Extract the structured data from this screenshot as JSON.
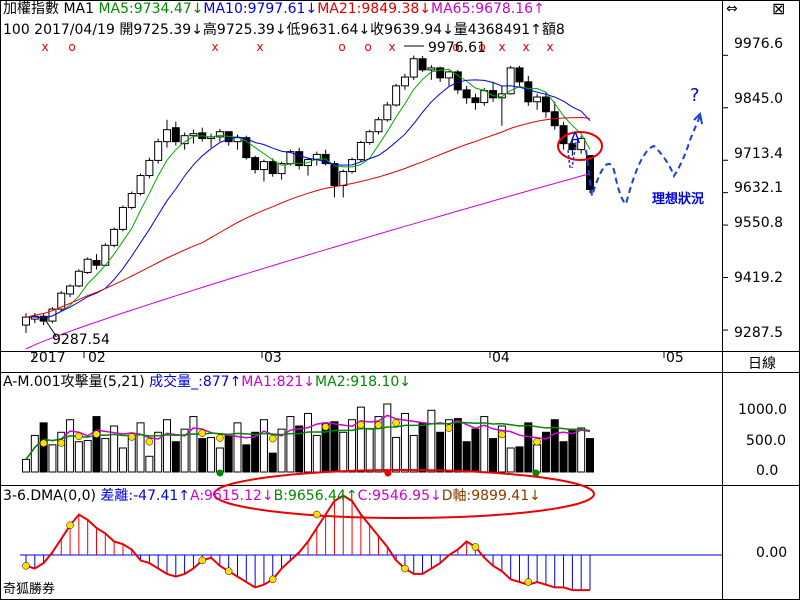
{
  "header": {
    "line1": [
      {
        "text": "加權指數 MA1 ",
        "color": "#000000"
      },
      {
        "text": "MA5:9734.47↓",
        "color": "#008800"
      },
      {
        "text": "MA10:9797.61↓",
        "color": "#0000e0"
      },
      {
        "text": "MA21:9849.38↓",
        "color": "#e00000"
      },
      {
        "text": "MA65:9678.16↑",
        "color": "#d000d0"
      }
    ],
    "line2": "100 2017/04/19 開9725.39↓高9725.39↓低9631.64↓收9639.94↓量4368491↑額8"
  },
  "price_axis": {
    "labels": [
      "9976.6",
      "9845.0",
      "9713.4",
      "9632.1",
      "9550.8",
      "9419.2",
      "9287.5"
    ],
    "unit_label": "日線"
  },
  "price_annotations": {
    "high": "9976.61",
    "low": "9287.54",
    "a_mark": "A",
    "question": "?",
    "ideal": "理想狀況"
  },
  "date_axis": {
    "labels": [
      "2017",
      "02",
      "03",
      "04",
      "05"
    ]
  },
  "volume_panel": {
    "title_parts": [
      {
        "text": "A-M.001攻擊量(5,21) ",
        "color": "#000000"
      },
      {
        "text": "成交量_:877↑",
        "color": "#0000e0"
      },
      {
        "text": "MA1:821↓",
        "color": "#d000d0"
      },
      {
        "text": "MA2:918.10↓",
        "color": "#008800"
      }
    ],
    "axis": [
      "1000.0",
      "500.0",
      "0.0"
    ]
  },
  "dma_panel": {
    "title_parts": [
      {
        "text": "3-6.DMA(0,0) ",
        "color": "#000000"
      },
      {
        "text": "差離:-47.41↑",
        "color": "#0000e0"
      },
      {
        "text": "A:9615.12↓",
        "color": "#d000d0"
      },
      {
        "text": "B:9656.44↑",
        "color": "#008800"
      },
      {
        "text": "C:9546.95↓",
        "color": "#d000d0"
      },
      {
        "text": "D軸:9899.41↓",
        "color": "#8a3a00"
      }
    ],
    "axis": [
      "0.00"
    ],
    "watermark": "奇狐勝券"
  },
  "chart_data": {
    "type": "candlestick",
    "title": "加權指數",
    "period": "日線",
    "dates_shown": [
      "2017",
      "02",
      "03",
      "04",
      "05"
    ],
    "ylim": [
      9250,
      10020
    ],
    "y_ticks": [
      9976.6,
      9845.0,
      9713.4,
      9632.1,
      9550.8,
      9419.2,
      9287.5
    ],
    "last_bar": {
      "date": "2017/04/19",
      "open": 9725.39,
      "high": 9725.39,
      "low": 9631.64,
      "close": 9639.94,
      "volume": 4368491
    },
    "candles": [
      [
        9300,
        9330,
        9280,
        9320
      ],
      [
        9315,
        9330,
        9305,
        9322
      ],
      [
        9322,
        9328,
        9300,
        9310
      ],
      [
        9310,
        9345,
        9305,
        9340
      ],
      [
        9340,
        9385,
        9335,
        9380
      ],
      [
        9378,
        9402,
        9370,
        9398
      ],
      [
        9398,
        9440,
        9395,
        9435
      ],
      [
        9432,
        9470,
        9428,
        9465
      ],
      [
        9462,
        9478,
        9440,
        9450
      ],
      [
        9450,
        9505,
        9448,
        9500
      ],
      [
        9500,
        9545,
        9495,
        9540
      ],
      [
        9540,
        9600,
        9535,
        9595
      ],
      [
        9595,
        9635,
        9590,
        9630
      ],
      [
        9630,
        9680,
        9625,
        9675
      ],
      [
        9675,
        9720,
        9668,
        9713
      ],
      [
        9713,
        9768,
        9705,
        9760
      ],
      [
        9760,
        9815,
        9745,
        9790
      ],
      [
        9795,
        9810,
        9750,
        9760
      ],
      [
        9755,
        9783,
        9740,
        9775
      ],
      [
        9775,
        9790,
        9755,
        9780
      ],
      [
        9782,
        9795,
        9760,
        9768
      ],
      [
        9768,
        9780,
        9745,
        9772
      ],
      [
        9772,
        9792,
        9760,
        9785
      ],
      [
        9785,
        9785,
        9750,
        9760
      ],
      [
        9760,
        9778,
        9740,
        9770
      ],
      [
        9770,
        9775,
        9715,
        9720
      ],
      [
        9720,
        9725,
        9680,
        9690
      ],
      [
        9690,
        9715,
        9660,
        9710
      ],
      [
        9710,
        9718,
        9672,
        9680
      ],
      [
        9680,
        9710,
        9665,
        9705
      ],
      [
        9705,
        9740,
        9700,
        9735
      ],
      [
        9735,
        9745,
        9690,
        9700
      ],
      [
        9700,
        9720,
        9675,
        9715
      ],
      [
        9715,
        9735,
        9700,
        9728
      ],
      [
        9728,
        9740,
        9700,
        9705
      ],
      [
        9705,
        9712,
        9620,
        9650
      ],
      [
        9650,
        9690,
        9620,
        9685
      ],
      [
        9685,
        9720,
        9680,
        9715
      ],
      [
        9715,
        9762,
        9710,
        9758
      ],
      [
        9758,
        9790,
        9752,
        9785
      ],
      [
        9785,
        9822,
        9778,
        9815
      ],
      [
        9815,
        9860,
        9810,
        9852
      ],
      [
        9852,
        9905,
        9848,
        9900
      ],
      [
        9900,
        9930,
        9890,
        9922
      ],
      [
        9922,
        9976,
        9915,
        9968
      ],
      [
        9968,
        9975,
        9935,
        9940
      ],
      [
        9940,
        9952,
        9915,
        9945
      ],
      [
        9945,
        9948,
        9910,
        9920
      ],
      [
        9920,
        9938,
        9900,
        9935
      ],
      [
        9935,
        9940,
        9880,
        9890
      ],
      [
        9890,
        9900,
        9855,
        9870
      ],
      [
        9870,
        9880,
        9840,
        9858
      ],
      [
        9858,
        9895,
        9850,
        9888
      ],
      [
        9888,
        9910,
        9860,
        9870
      ],
      [
        9870,
        9900,
        9800,
        9880
      ],
      [
        9880,
        9950,
        9878,
        9945
      ],
      [
        9945,
        9950,
        9900,
        9910
      ],
      [
        9910,
        9925,
        9850,
        9860
      ],
      [
        9860,
        9880,
        9840,
        9872
      ],
      [
        9872,
        9885,
        9820,
        9835
      ],
      [
        9835,
        9860,
        9790,
        9800
      ],
      [
        9800,
        9810,
        9740,
        9755
      ],
      [
        9755,
        9770,
        9725,
        9740
      ],
      [
        9740,
        9775,
        9730,
        9768
      ],
      [
        9725,
        9725,
        9631,
        9640
      ]
    ],
    "series": [
      {
        "name": "MA5",
        "value": 9734.47,
        "color": "#00aa00"
      },
      {
        "name": "MA10",
        "value": 9797.61,
        "color": "#0000e0"
      },
      {
        "name": "MA21",
        "value": 9849.38,
        "color": "#e00000"
      },
      {
        "name": "MA65",
        "value": 9678.16,
        "color": "#d000d0"
      }
    ]
  }
}
